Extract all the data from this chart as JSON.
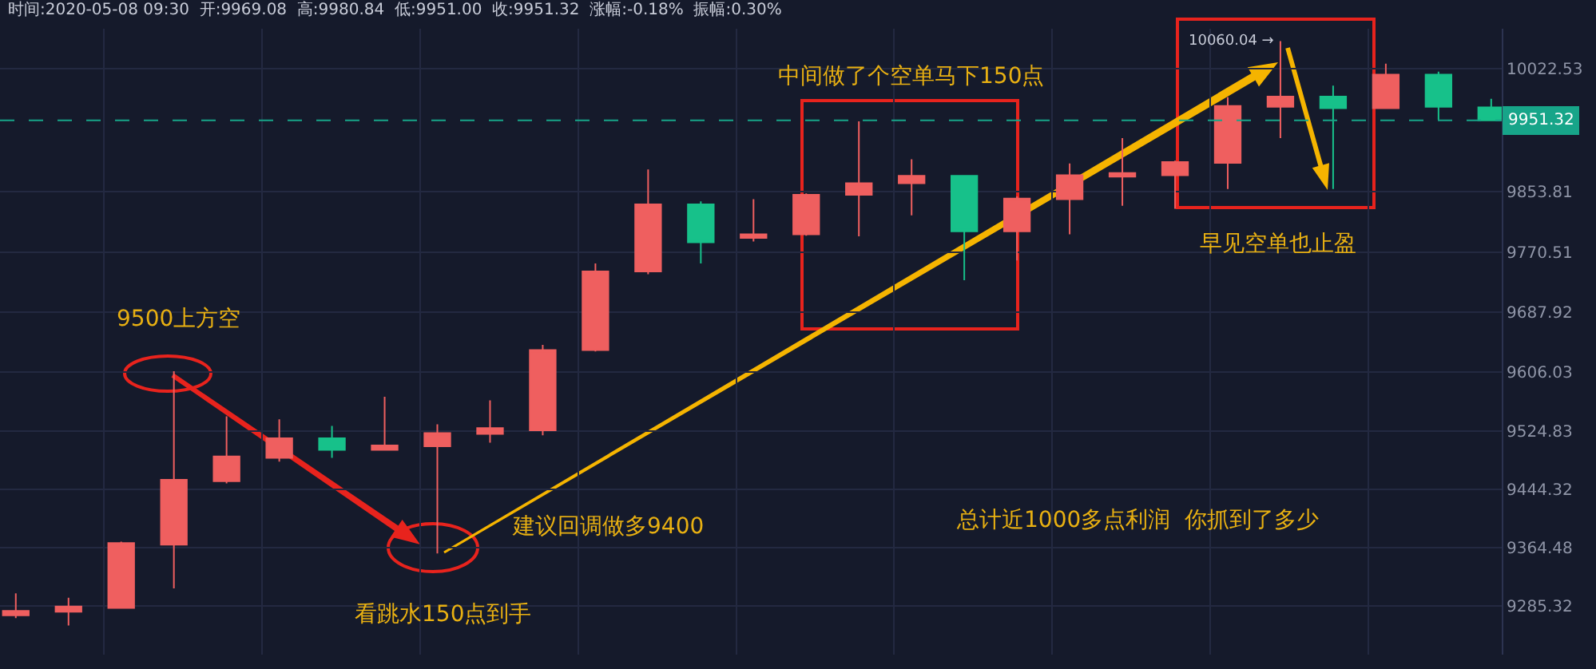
{
  "chart_data": {
    "type": "candlestick",
    "title": "时间:2020-05-08 09:30  开:9969.08  高:9980.84  低:9951.00  收:9951.32  涨幅:-0.18%  振幅:0.30%",
    "categories": [
      null,
      null,
      null,
      null,
      null,
      null,
      null,
      null,
      null,
      null,
      null,
      null,
      null,
      null,
      null,
      null,
      null,
      null,
      null,
      null,
      null,
      null,
      null,
      null,
      null,
      null,
      null,
      null,
      null
    ],
    "ohlc": [
      [
        9272,
        9302,
        9268,
        9278
      ],
      [
        9277,
        9296,
        9258,
        9284
      ],
      [
        9282,
        9373,
        9281,
        9371
      ],
      [
        9369,
        9607,
        9309,
        9458
      ],
      [
        9456,
        9545,
        9453,
        9490
      ],
      [
        9488,
        9541,
        9483,
        9515
      ],
      [
        9515,
        9532,
        9488,
        9499
      ],
      [
        9499,
        9572,
        9499,
        9505
      ],
      [
        9504,
        9534,
        9357,
        9522
      ],
      [
        9521,
        9567,
        9509,
        9529
      ],
      [
        9526,
        9643,
        9519,
        9636
      ],
      [
        9636,
        9755,
        9634,
        9744
      ],
      [
        9744,
        9884,
        9740,
        9836
      ],
      [
        9836,
        9840,
        9755,
        9784
      ],
      [
        9790,
        9843,
        9785,
        9795
      ],
      [
        9795,
        9851,
        9793,
        9849
      ],
      [
        9849,
        9950,
        9792,
        9865
      ],
      [
        9865,
        9898,
        9821,
        9875
      ],
      [
        9875,
        9876,
        9732,
        9799
      ],
      [
        9799,
        9847,
        9759,
        9844
      ],
      [
        9843,
        9892,
        9795,
        9876
      ],
      [
        9874,
        9927,
        9834,
        9879
      ],
      [
        9876,
        9896,
        9830,
        9894
      ],
      [
        9893,
        9983,
        9857,
        9971
      ],
      [
        9970,
        10060.04,
        9927,
        9984
      ],
      [
        9984,
        9999,
        9857,
        9968
      ],
      [
        9968,
        10029,
        9968,
        10014
      ],
      [
        10014,
        10018,
        9952,
        9970
      ],
      [
        9969.08,
        9980.84,
        9951.0,
        9951.32
      ]
    ],
    "colors": [
      "#ef5f5f",
      "#ef5f5f",
      "#ef5f5f",
      "#ef5f5f",
      "#ef5f5f",
      "#ef5f5f",
      "#17c18a",
      "#ef5f5f",
      "#ef5f5f",
      "#ef5f5f",
      "#ef5f5f",
      "#ef5f5f",
      "#ef5f5f",
      "#17c18a",
      "#ef5f5f",
      "#ef5f5f",
      "#ef5f5f",
      "#ef5f5f",
      "#17c18a",
      "#ef5f5f",
      "#ef5f5f",
      "#ef5f5f",
      "#ef5f5f",
      "#ef5f5f",
      "#ef5f5f",
      "#17c18a",
      "#ef5f5f",
      "#17c18a",
      "#17c18a"
    ],
    "ylim": [
      9218,
      10077
    ],
    "yticks": [
      9285.32,
      9364.48,
      9444.32,
      9524.83,
      9606.03,
      9687.92,
      9770.51,
      9853.81,
      10022.53
    ],
    "ref_lines": [
      {
        "axis": "y",
        "value": 9951.32,
        "label": "9951.32",
        "color": "#17a589",
        "line_style": "dashed"
      }
    ],
    "annotations": [
      "9500上方空",
      "看跳水150点到手",
      "建议回调做多9400",
      "中间做了个空单马下150点",
      "早见空单也止盈",
      "总计近1000多点利润  你抓到了多少",
      "10060.04 →"
    ],
    "grid": true,
    "tick_labels": "y"
  }
}
